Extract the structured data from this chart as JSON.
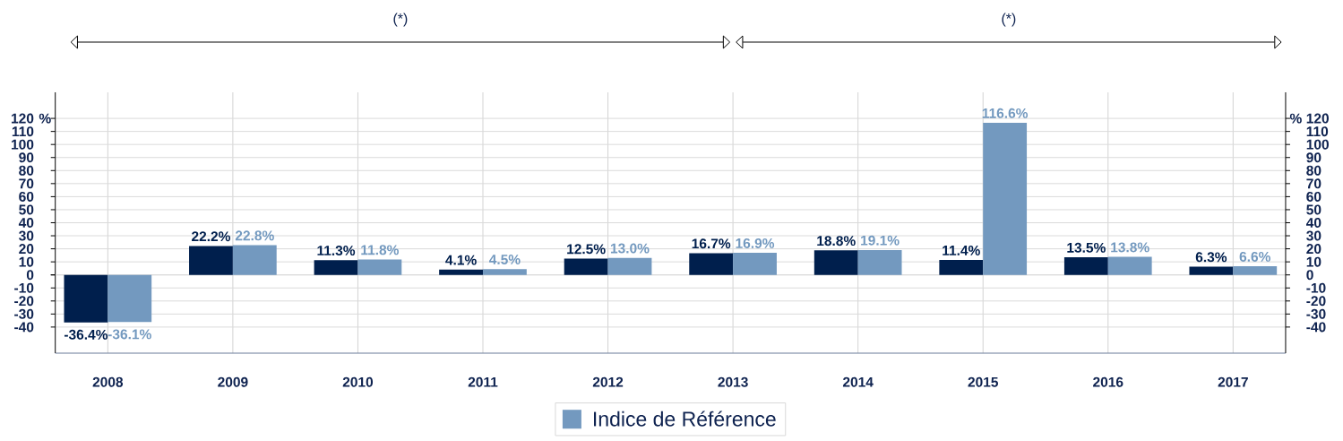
{
  "chart_data": {
    "type": "bar",
    "categories": [
      "2008",
      "2009",
      "2010",
      "2011",
      "2012",
      "2013",
      "2014",
      "2015",
      "2016",
      "2017"
    ],
    "series": [
      {
        "color": "#001f4d",
        "values": [
          -36.4,
          22.2,
          11.3,
          4.1,
          12.5,
          16.7,
          18.8,
          11.4,
          13.5,
          6.3
        ],
        "value_labels": [
          "-36.4%",
          "22.2%",
          "11.3%",
          "4.1%",
          "12.5%",
          "16.7%",
          "18.8%",
          "11.4%",
          "13.5%",
          "6.3%"
        ]
      },
      {
        "name": "Indice de Référence",
        "color": "#7399bf",
        "values": [
          -36.1,
          22.8,
          11.8,
          4.5,
          13.0,
          16.9,
          19.1,
          116.6,
          13.8,
          6.6
        ],
        "value_labels": [
          "-36.1%",
          "22.8%",
          "11.8%",
          "4.5%",
          "13.0%",
          "16.9%",
          "19.1%",
          "116.6%",
          "13.8%",
          "6.6%"
        ]
      }
    ],
    "ylabel": "%",
    "y2label": "%",
    "ylim": [
      -60,
      140
    ],
    "yticks": [
      -40,
      -30,
      -20,
      -10,
      0,
      10,
      20,
      30,
      40,
      50,
      60,
      70,
      80,
      90,
      100,
      110,
      120
    ],
    "y2lim": [
      -60,
      140
    ],
    "y2ticks": [
      -40,
      -30,
      -20,
      -10,
      0,
      10,
      20,
      30,
      40,
      50,
      60,
      70,
      80,
      90,
      100,
      110,
      120
    ],
    "grid": true,
    "legend": "bottom",
    "annotations": [
      "(*)",
      "(*)"
    ]
  }
}
